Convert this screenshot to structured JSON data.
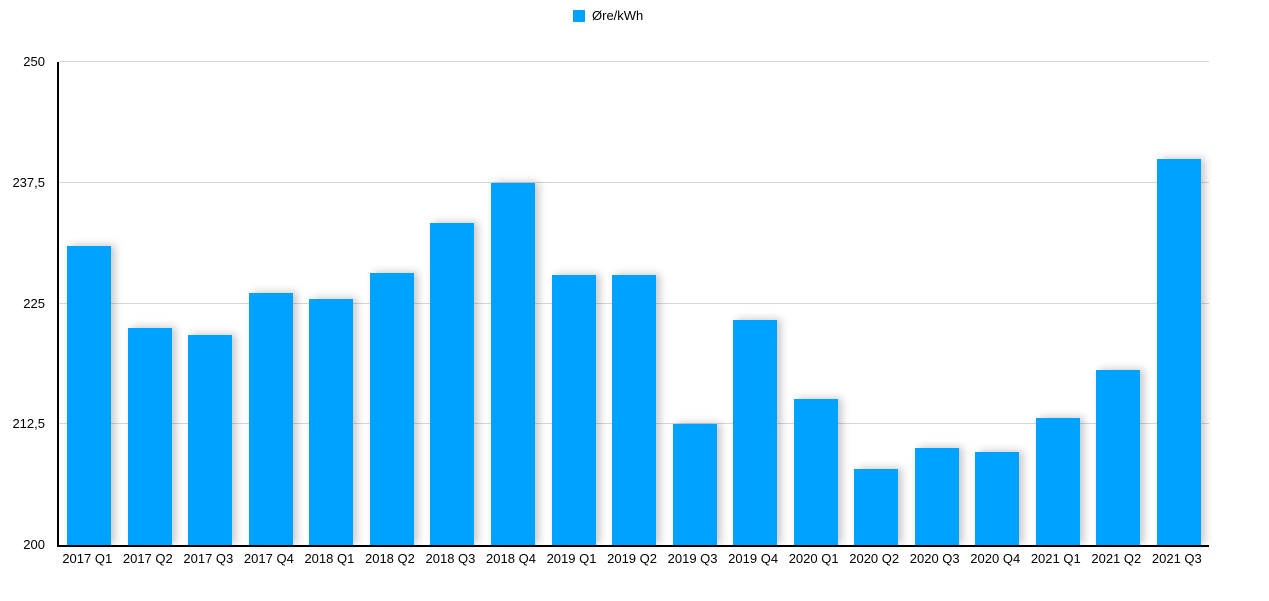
{
  "legend": {
    "series_label": "Øre/kWh",
    "swatch_color": "#00A2FF"
  },
  "colors": {
    "bar": "#00A2FF",
    "gridline": "#d6d6d6",
    "axis": "#000000",
    "background": "#ffffff",
    "text": "#000000"
  },
  "chart_data": {
    "type": "bar",
    "title": "",
    "xlabel": "",
    "ylabel": "",
    "series_name": "Øre/kWh",
    "categories": [
      "2017 Q1",
      "2017 Q2",
      "2017 Q3",
      "2017 Q4",
      "2018 Q1",
      "2018 Q2",
      "2018 Q3",
      "2018 Q4",
      "2019 Q1",
      "2019 Q2",
      "2019 Q3",
      "2019 Q4",
      "2020 Q1",
      "2020 Q2",
      "2020 Q3",
      "2020 Q4",
      "2021 Q1",
      "2021 Q2",
      "2021 Q3"
    ],
    "values": [
      231,
      222.5,
      221.7,
      226.1,
      225.5,
      228.2,
      233.3,
      237.5,
      228,
      228,
      212.5,
      223.3,
      215.1,
      207.9,
      210,
      209.6,
      213.2,
      218.1,
      240
    ],
    "ylim": [
      200,
      250
    ],
    "yticks": [
      200,
      212.5,
      225,
      237.5,
      250
    ],
    "ytick_labels": [
      "200",
      "212,5",
      "225",
      "237,5",
      "250"
    ],
    "grid": true,
    "legend_position": "top-center",
    "bar_color": "#00A2FF",
    "decimal_separator": ","
  }
}
